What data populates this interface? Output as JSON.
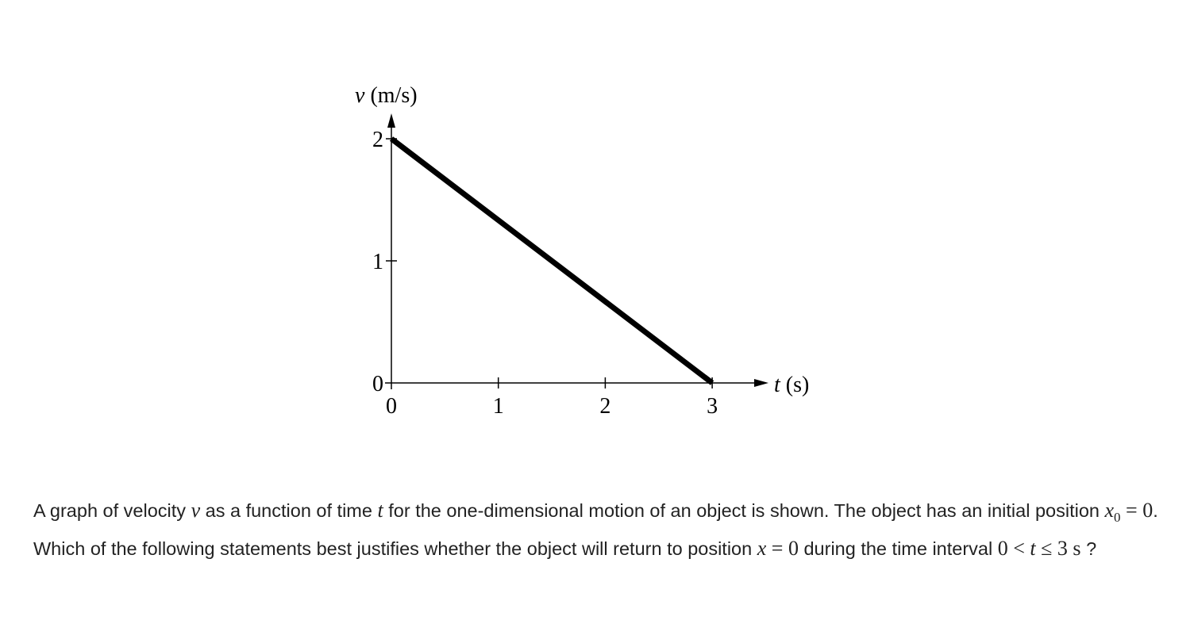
{
  "chart_data": {
    "type": "line",
    "xlabel": "t (s)",
    "xlabel_var": "t",
    "xlabel_unit": "(s)",
    "ylabel": "v (m/s)",
    "ylabel_var": "v",
    "ylabel_unit": "(m/s)",
    "xlim": [
      0,
      3.5
    ],
    "ylim": [
      0,
      2.2
    ],
    "x_ticks": [
      0,
      1,
      2,
      3
    ],
    "y_ticks": [
      0,
      1,
      2
    ],
    "grid": false,
    "series": [
      {
        "x": [
          0,
          3
        ],
        "y": [
          2,
          0
        ],
        "color": "#000000"
      }
    ]
  },
  "question": {
    "t1": "A graph of velocity ",
    "m1": "v",
    "t2": " as a function of time ",
    "m2": "t",
    "t3": " for the one-dimensional motion of an object is shown. The object has an initial position ",
    "m3": "x",
    "m3sub": "0",
    "m3rest": " = 0",
    "t4": ". Which of the following statements best justifies whether the object will return to position ",
    "m4": "x",
    "m4rest": " = 0",
    "t5": " during the time interval ",
    "m5a": "0 < ",
    "m5b": "t",
    "m5c": " ≤ 3 s",
    "t6": " ?"
  }
}
